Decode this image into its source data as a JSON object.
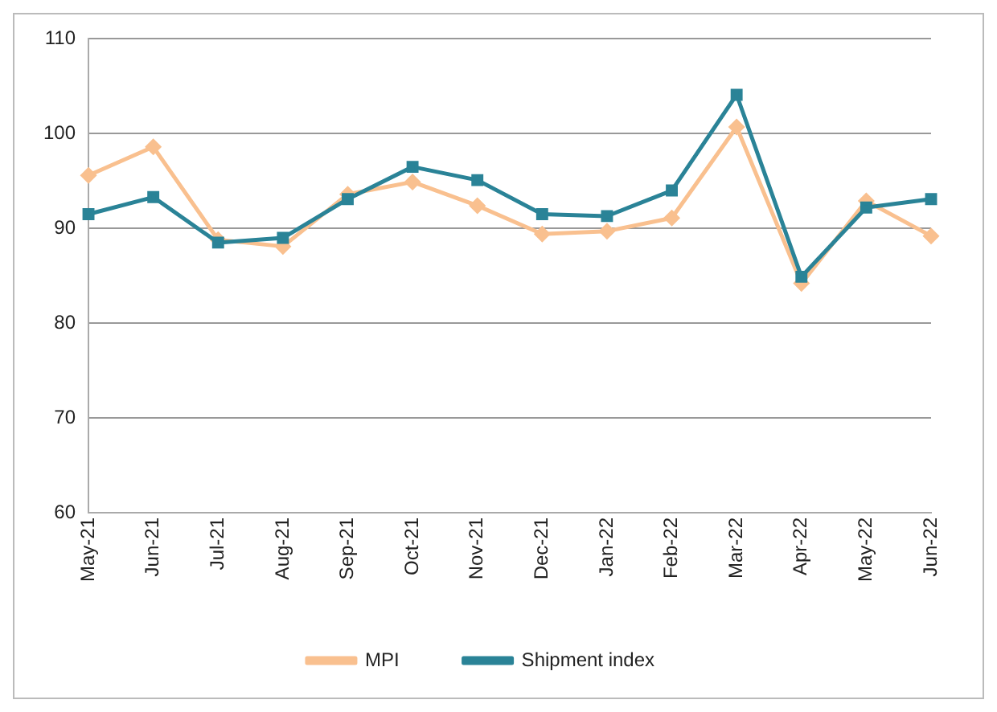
{
  "chart_data": {
    "type": "line",
    "categories": [
      "May-21",
      "Jun-21",
      "Jul-21",
      "Aug-21",
      "Sep-21",
      "Oct-21",
      "Nov-21",
      "Dec-21",
      "Jan-22",
      "Feb-22",
      "Mar-22",
      "Apr-22",
      "May-22",
      "Jun-22"
    ],
    "series": [
      {
        "name": "MPI",
        "color": "#f9c08f",
        "marker": "diamond",
        "values": [
          95.6,
          98.6,
          88.8,
          88.1,
          93.6,
          94.9,
          92.4,
          89.4,
          89.7,
          91.1,
          100.7,
          84.2,
          92.9,
          89.2
        ]
      },
      {
        "name": "Shipment index",
        "color": "#2a8397",
        "marker": "square",
        "values": [
          91.5,
          93.3,
          88.5,
          89.0,
          93.1,
          96.5,
          95.1,
          91.5,
          91.3,
          94.0,
          104.1,
          84.9,
          92.2,
          93.1
        ]
      }
    ],
    "ylim": [
      60,
      110
    ],
    "yticks": [
      60,
      70,
      80,
      90,
      100,
      110
    ],
    "grid": "y",
    "legend": "bottom"
  }
}
